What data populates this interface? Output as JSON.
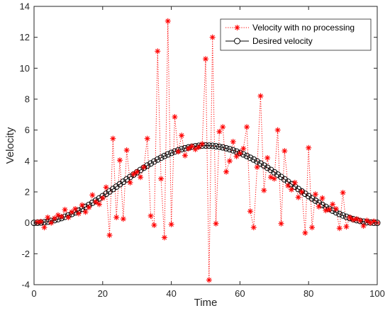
{
  "chart_data": {
    "type": "line",
    "xlabel": "Time",
    "ylabel": "Velocity",
    "xlim": [
      0,
      100
    ],
    "ylim": [
      -4,
      14
    ],
    "xticks": [
      0,
      20,
      40,
      60,
      80,
      100
    ],
    "yticks": [
      -4,
      -2,
      0,
      2,
      4,
      6,
      8,
      10,
      12,
      14
    ],
    "grid": false,
    "legend_position": "top-right",
    "series": [
      {
        "name": "Velocity with no processing",
        "color": "#ff0000",
        "line_style": "dotted",
        "marker": "asterisk",
        "x": [
          1,
          2,
          3,
          4,
          5,
          6,
          7,
          8,
          9,
          10,
          11,
          12,
          13,
          14,
          15,
          16,
          17,
          18,
          19,
          20,
          21,
          22,
          23,
          24,
          25,
          26,
          27,
          28,
          29,
          30,
          31,
          32,
          33,
          34,
          35,
          36,
          37,
          38,
          39,
          40,
          41,
          42,
          43,
          44,
          45,
          46,
          47,
          48,
          49,
          50,
          51,
          52,
          53,
          54,
          55,
          56,
          57,
          58,
          59,
          60,
          61,
          62,
          63,
          64,
          65,
          66,
          67,
          68,
          69,
          70,
          71,
          72,
          73,
          74,
          75,
          76,
          77,
          78,
          79,
          80,
          81,
          82,
          83,
          84,
          85,
          86,
          87,
          88,
          89,
          90,
          91,
          92,
          93,
          94,
          95,
          96,
          97,
          98,
          99,
          100
        ],
        "values": [
          0.05,
          0.08,
          -0.3,
          0.35,
          0.0,
          0.3,
          0.5,
          0.4,
          0.85,
          0.35,
          0.7,
          0.9,
          0.6,
          1.15,
          0.7,
          1.0,
          1.8,
          1.35,
          1.2,
          1.6,
          2.3,
          -0.8,
          5.45,
          0.35,
          4.05,
          0.25,
          4.7,
          2.6,
          3.15,
          3.3,
          2.95,
          3.6,
          5.45,
          0.45,
          -0.15,
          11.1,
          2.85,
          -0.95,
          13.05,
          -0.1,
          6.85,
          4.6,
          5.65,
          4.35,
          4.8,
          4.95,
          4.75,
          4.9,
          5.1,
          10.6,
          -3.7,
          12.0,
          -0.05,
          5.9,
          6.2,
          3.3,
          4.0,
          5.25,
          4.3,
          4.5,
          4.8,
          6.2,
          0.75,
          -0.3,
          3.6,
          8.2,
          2.1,
          4.2,
          2.95,
          2.85,
          6.0,
          -0.05,
          4.65,
          2.4,
          2.15,
          2.6,
          1.65,
          2.0,
          -0.65,
          4.85,
          -0.3,
          1.85,
          1.05,
          1.6,
          0.8,
          0.85,
          1.2,
          0.9,
          -0.35,
          1.95,
          -0.25,
          0.35,
          0.2,
          0.25,
          0.15,
          -0.2,
          0.15,
          0.0,
          0.1,
          0.0
        ]
      },
      {
        "name": "Desired velocity",
        "color": "#000000",
        "line_style": "solid",
        "marker": "circle",
        "curve": "raised-cosine",
        "x_range": [
          0,
          100
        ],
        "y_range": [
          0,
          5
        ],
        "step": 1
      }
    ]
  }
}
